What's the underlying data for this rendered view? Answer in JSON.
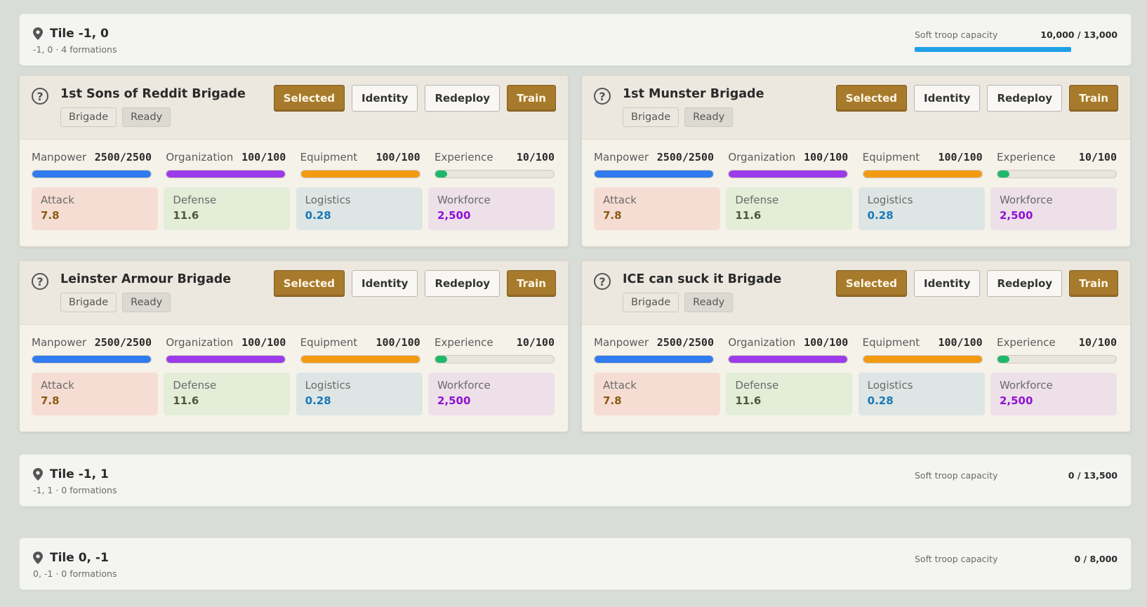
{
  "tiles": [
    {
      "title": "Tile -1, 0",
      "sub": "-1, 0 · 4 formations",
      "cap_label": "Soft troop capacity",
      "cap_value": "10,000 / 13,000",
      "cap_fraction": 0.77
    },
    {
      "title": "Tile -1, 1",
      "sub": "-1, 1 · 0 formations",
      "cap_label": "Soft troop capacity",
      "cap_value": "0 / 13,500",
      "cap_fraction": 0
    },
    {
      "title": "Tile 0, -1",
      "sub": "0, -1 · 0 formations",
      "cap_label": "Soft troop capacity",
      "cap_value": "0 / 8,000",
      "cap_fraction": 0
    }
  ],
  "buttons": {
    "selected": "Selected",
    "identity": "Identity",
    "redeploy": "Redeploy",
    "train": "Train"
  },
  "badges": {
    "type": "Brigade",
    "status": "Ready"
  },
  "stat_labels": {
    "manpower": "Manpower",
    "organization": "Organization",
    "equipment": "Equipment",
    "experience": "Experience"
  },
  "box_labels": {
    "attack": "Attack",
    "defense": "Defense",
    "logistics": "Logistics",
    "workforce": "Workforce"
  },
  "colors": {
    "manpower": "#2f7bef",
    "organization": "#9b3bea",
    "equipment": "#f39a13",
    "experience": "#1fb86a",
    "capacity": "#1ea0e6",
    "button_gold": "#a77a2c"
  },
  "formations": [
    {
      "name": "1st Sons of Reddit Brigade",
      "manpower": "2500/2500",
      "manpower_frac": 1,
      "organization": "100/100",
      "organization_frac": 1,
      "equipment": "100/100",
      "equipment_frac": 1,
      "experience": "10/100",
      "experience_frac": 0.1,
      "attack": "7.8",
      "defense": "11.6",
      "logistics": "0.28",
      "workforce": "2,500"
    },
    {
      "name": "1st Munster Brigade",
      "manpower": "2500/2500",
      "manpower_frac": 1,
      "organization": "100/100",
      "organization_frac": 1,
      "equipment": "100/100",
      "equipment_frac": 1,
      "experience": "10/100",
      "experience_frac": 0.1,
      "attack": "7.8",
      "defense": "11.6",
      "logistics": "0.28",
      "workforce": "2,500"
    },
    {
      "name": "Leinster Armour Brigade",
      "manpower": "2500/2500",
      "manpower_frac": 1,
      "organization": "100/100",
      "organization_frac": 1,
      "equipment": "100/100",
      "equipment_frac": 1,
      "experience": "10/100",
      "experience_frac": 0.1,
      "attack": "7.8",
      "defense": "11.6",
      "logistics": "0.28",
      "workforce": "2,500"
    },
    {
      "name": "ICE can suck it Brigade",
      "manpower": "2500/2500",
      "manpower_frac": 1,
      "organization": "100/100",
      "organization_frac": 1,
      "equipment": "100/100",
      "equipment_frac": 1,
      "experience": "10/100",
      "experience_frac": 0.1,
      "attack": "7.8",
      "defense": "11.6",
      "logistics": "0.28",
      "workforce": "2,500"
    }
  ]
}
